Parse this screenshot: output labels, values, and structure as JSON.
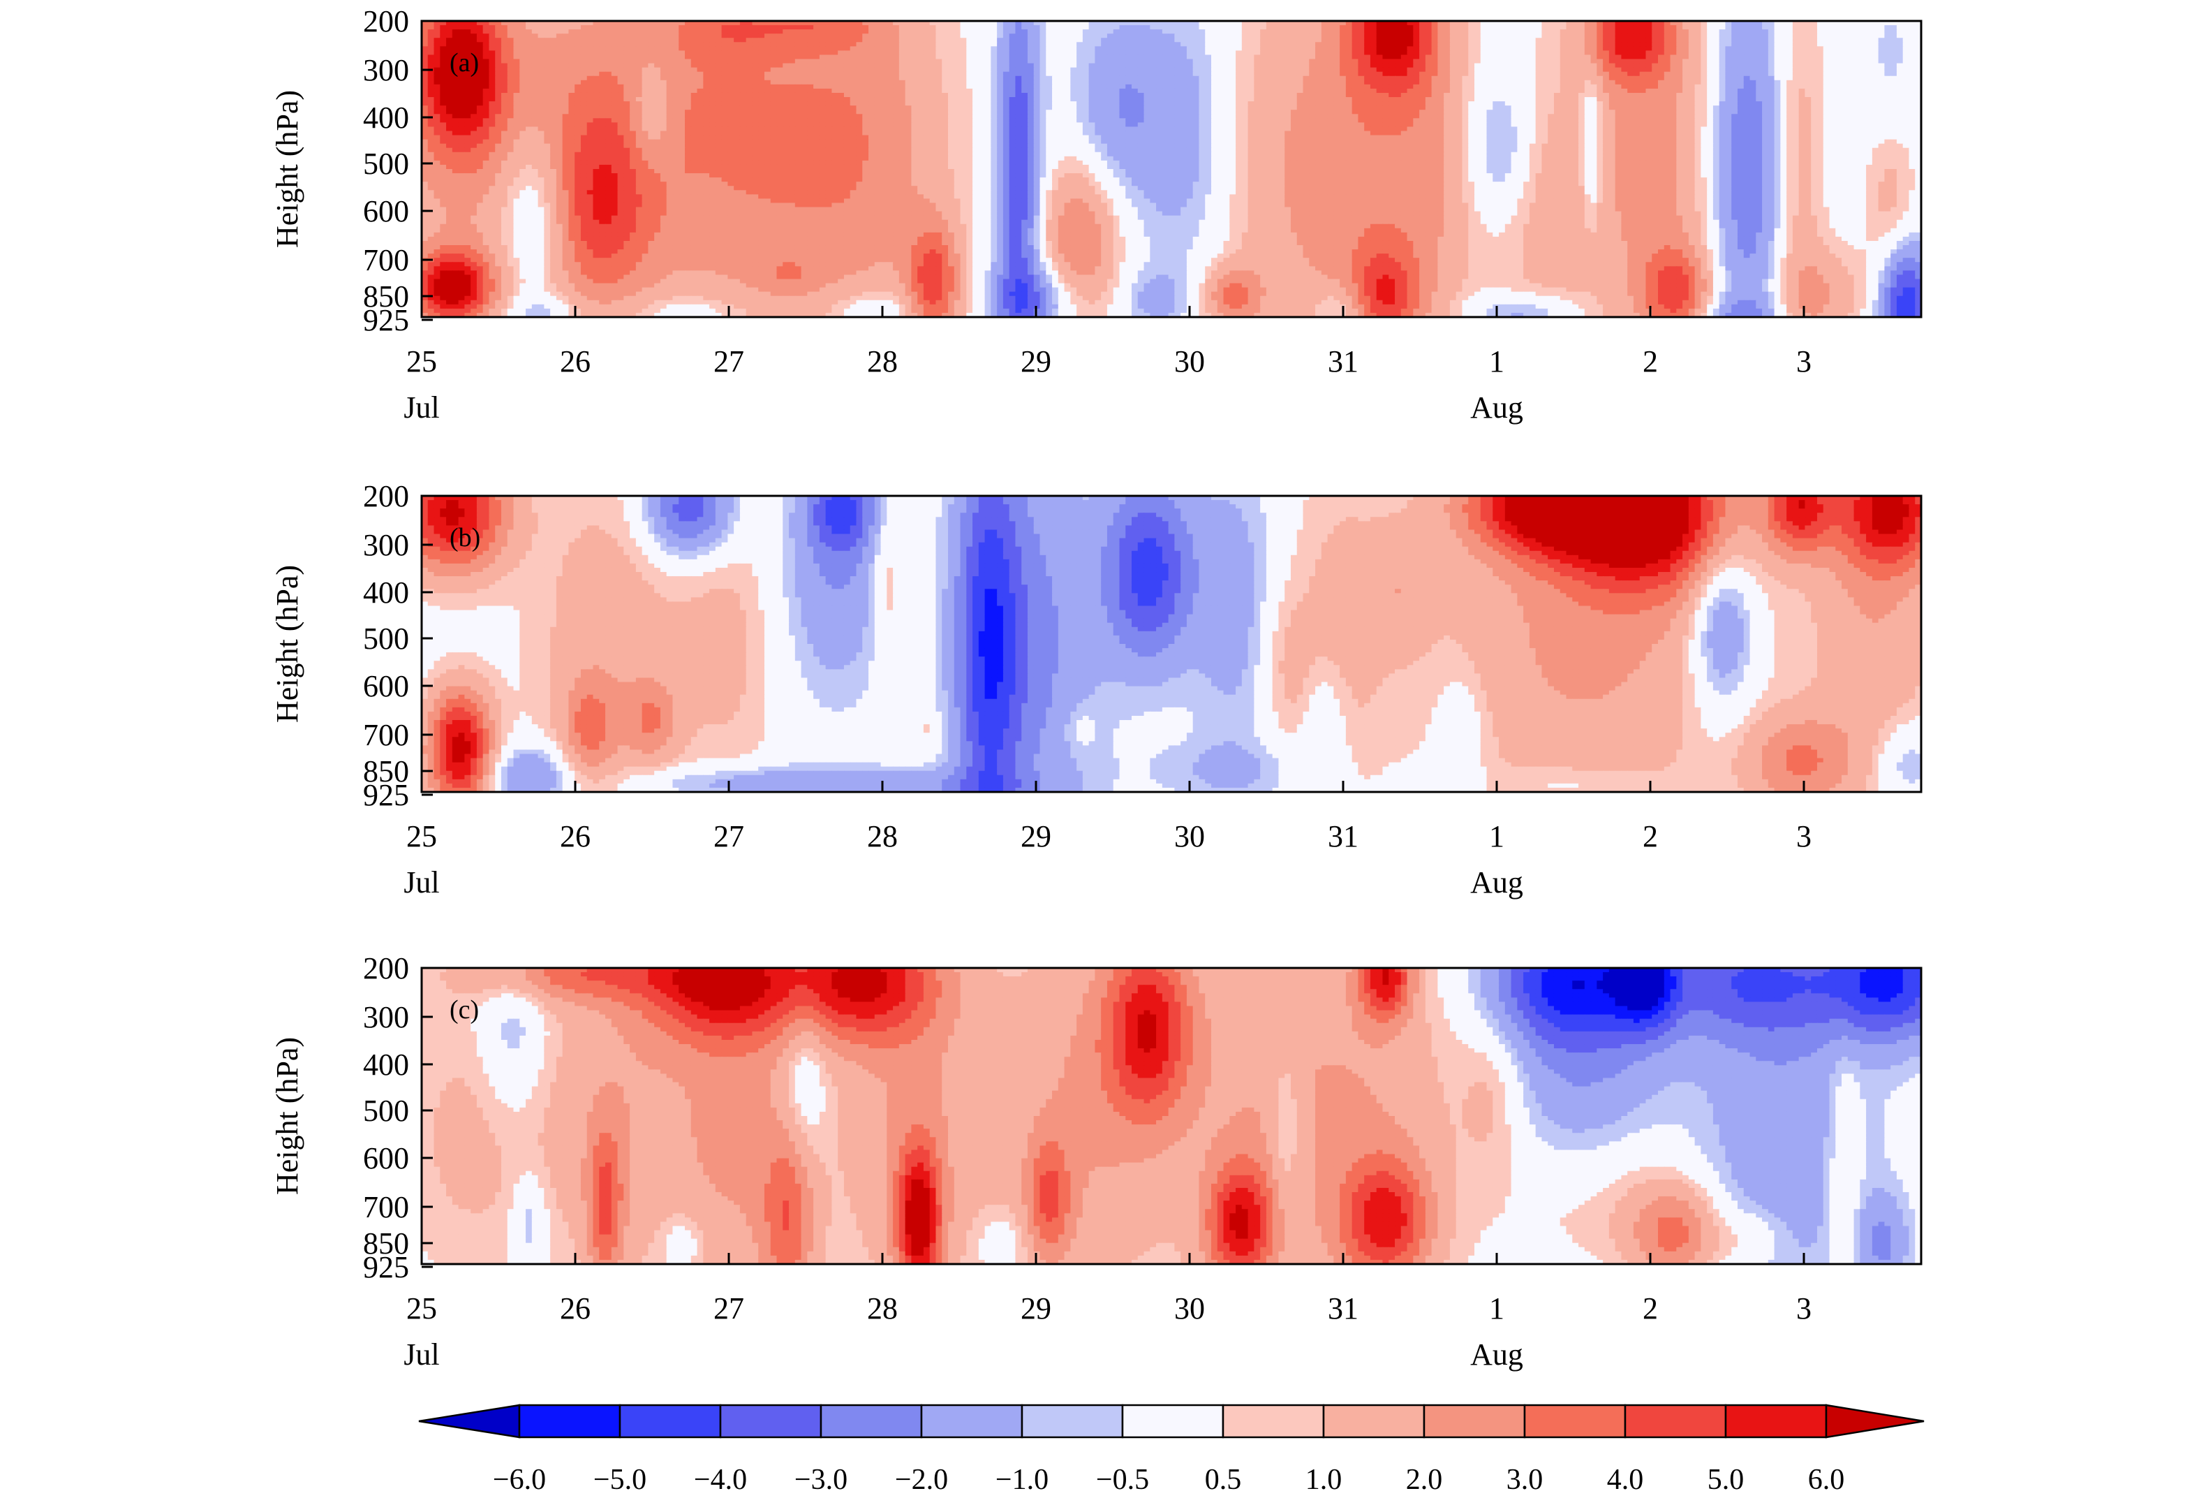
{
  "chart_data": [
    {
      "type": "heatmap",
      "panel_label": "(a)",
      "ylabel": "Height (hPa)",
      "y_ticks": [
        "200",
        "300",
        "400",
        "500",
        "600",
        "700",
        "850",
        "925"
      ],
      "x_ticks": [
        "25",
        "26",
        "27",
        "28",
        "29",
        "30",
        "31",
        "1",
        "2",
        "3"
      ],
      "x_month_labels": [
        {
          "at": "25",
          "text": "Jul"
        },
        {
          "at": "1",
          "text": "Aug"
        }
      ],
      "xlim": [
        0,
        9.8
      ],
      "ylim": [
        0,
        7
      ],
      "blobs": [
        {
          "t": 0.25,
          "h": 1.15,
          "st": 0.2,
          "sh": 1.3,
          "a": 6.2
        },
        {
          "t": 0.2,
          "h": 6.3,
          "st": 0.18,
          "sh": 0.6,
          "a": 6.0
        },
        {
          "t": 0.45,
          "h": 3.5,
          "st": 0.6,
          "sh": 3.0,
          "a": 2.0
        },
        {
          "t": 1.15,
          "h": 4.5,
          "st": 0.25,
          "sh": 1.6,
          "a": 3.4
        },
        {
          "t": 1.2,
          "h": 1.5,
          "st": 0.5,
          "sh": 2.0,
          "a": 1.2
        },
        {
          "t": 0.75,
          "h": 4.5,
          "st": 0.18,
          "sh": 1.5,
          "a": -2.8
        },
        {
          "t": 0.8,
          "h": 6.9,
          "st": 0.2,
          "sh": 0.3,
          "a": -1.3
        },
        {
          "t": 1.85,
          "h": 3.0,
          "st": 0.5,
          "sh": 3.5,
          "a": 1.8
        },
        {
          "t": 1.5,
          "h": 2.2,
          "st": 0.1,
          "sh": 0.9,
          "a": -2.0
        },
        {
          "t": 2.0,
          "h": 0.2,
          "st": 0.25,
          "sh": 0.5,
          "a": 1.5
        },
        {
          "t": 1.75,
          "h": 6.9,
          "st": 0.3,
          "sh": 0.3,
          "a": -1.3
        },
        {
          "t": 2.55,
          "h": 3.0,
          "st": 0.5,
          "sh": 3.5,
          "a": 2.0
        },
        {
          "t": 2.6,
          "h": 0.1,
          "st": 0.3,
          "sh": 0.4,
          "a": 1.6
        },
        {
          "t": 2.4,
          "h": 6.0,
          "st": 0.12,
          "sh": 0.3,
          "a": 1.0
        },
        {
          "t": 3.0,
          "h": 3.0,
          "st": 0.35,
          "sh": 3.0,
          "a": 1.3
        },
        {
          "t": 3.35,
          "h": 6.2,
          "st": 0.12,
          "sh": 1.0,
          "a": 4.0
        },
        {
          "t": 2.95,
          "h": 6.95,
          "st": 0.2,
          "sh": 0.4,
          "a": -1.8
        },
        {
          "t": 3.9,
          "h": 3.5,
          "st": 0.1,
          "sh": 3.0,
          "a": -4.0
        },
        {
          "t": 4.0,
          "h": 6.6,
          "st": 0.2,
          "sh": 0.6,
          "a": -2.5
        },
        {
          "t": 4.3,
          "h": 5.2,
          "st": 0.18,
          "sh": 1.3,
          "a": 3.0
        },
        {
          "t": 4.55,
          "h": 2.0,
          "st": 0.2,
          "sh": 1.5,
          "a": -1.8
        },
        {
          "t": 5.0,
          "h": 2.8,
          "st": 0.25,
          "sh": 2.5,
          "a": -2.0
        },
        {
          "t": 4.8,
          "h": 6.6,
          "st": 0.15,
          "sh": 0.5,
          "a": -1.3
        },
        {
          "t": 5.55,
          "h": 3.5,
          "st": 0.45,
          "sh": 3.5,
          "a": 1.5
        },
        {
          "t": 5.3,
          "h": 6.5,
          "st": 0.13,
          "sh": 0.5,
          "a": 2.8
        },
        {
          "t": 6.35,
          "h": 0.2,
          "st": 0.2,
          "sh": 1.0,
          "a": 5.0
        },
        {
          "t": 6.2,
          "h": 3.5,
          "st": 0.35,
          "sh": 3.5,
          "a": 2.2
        },
        {
          "t": 6.3,
          "h": 6.5,
          "st": 0.15,
          "sh": 0.8,
          "a": 3.3
        },
        {
          "t": 6.6,
          "h": 3.5,
          "st": 0.2,
          "sh": 3.5,
          "a": 1.2
        },
        {
          "t": 6.0,
          "h": 6.8,
          "st": 0.12,
          "sh": 0.4,
          "a": -1.5
        },
        {
          "t": 7.05,
          "h": 3.0,
          "st": 0.15,
          "sh": 1.2,
          "a": -1.8
        },
        {
          "t": 7.2,
          "h": 6.9,
          "st": 0.25,
          "sh": 0.3,
          "a": -1.8
        },
        {
          "t": 7.3,
          "h": 4.5,
          "st": 0.25,
          "sh": 2.5,
          "a": 1.2
        },
        {
          "t": 7.65,
          "h": 3.0,
          "st": 0.05,
          "sh": 1.3,
          "a": -2.0
        },
        {
          "t": 7.9,
          "h": 0.3,
          "st": 0.2,
          "sh": 0.8,
          "a": 4.5
        },
        {
          "t": 8.05,
          "h": 3.5,
          "st": 0.35,
          "sh": 3.5,
          "a": 2.4
        },
        {
          "t": 8.2,
          "h": 6.4,
          "st": 0.15,
          "sh": 0.7,
          "a": 3.5
        },
        {
          "t": 8.65,
          "h": 3.5,
          "st": 0.18,
          "sh": 3.0,
          "a": -3.2
        },
        {
          "t": 8.6,
          "h": 6.95,
          "st": 0.2,
          "sh": 0.3,
          "a": -1.5
        },
        {
          "t": 9.0,
          "h": 3.5,
          "st": 0.12,
          "sh": 3.5,
          "a": 1.5
        },
        {
          "t": 9.15,
          "h": 6.5,
          "st": 0.2,
          "sh": 0.8,
          "a": 1.8
        },
        {
          "t": 9.7,
          "h": 6.7,
          "st": 0.12,
          "sh": 1.0,
          "a": -5.0
        },
        {
          "t": 9.6,
          "h": 4.0,
          "st": 0.12,
          "sh": 1.8,
          "a": 1.5
        },
        {
          "t": 9.6,
          "h": 1.5,
          "st": 0.12,
          "sh": 1.5,
          "a": -1.0
        }
      ]
    },
    {
      "type": "heatmap",
      "panel_label": "(b)",
      "ylabel": "Height (hPa)",
      "y_ticks": [
        "200",
        "300",
        "400",
        "500",
        "600",
        "700",
        "850",
        "925"
      ],
      "x_ticks": [
        "25",
        "26",
        "27",
        "28",
        "29",
        "30",
        "31",
        "1",
        "2",
        "3"
      ],
      "x_month_labels": [
        {
          "at": "25",
          "text": "Jul"
        },
        {
          "at": "1",
          "text": "Aug"
        }
      ],
      "xlim": [
        0,
        9.8
      ],
      "ylim": [
        0,
        7
      ],
      "blobs": [
        {
          "t": 0.2,
          "h": 0.4,
          "st": 0.25,
          "sh": 1.0,
          "a": 6.2
        },
        {
          "t": 0.25,
          "h": 6.0,
          "st": 0.15,
          "sh": 1.0,
          "a": 6.5
        },
        {
          "t": 0.7,
          "h": 6.6,
          "st": 0.2,
          "sh": 0.5,
          "a": -2.3
        },
        {
          "t": 1.2,
          "h": 3.5,
          "st": 0.35,
          "sh": 3.0,
          "a": 1.6
        },
        {
          "t": 1.1,
          "h": 5.5,
          "st": 0.12,
          "sh": 0.8,
          "a": 2.5
        },
        {
          "t": 1.5,
          "h": 5.3,
          "st": 0.12,
          "sh": 0.7,
          "a": 2.2
        },
        {
          "t": 1.75,
          "h": 0.3,
          "st": 0.2,
          "sh": 0.8,
          "a": -4.0
        },
        {
          "t": 2.0,
          "h": 3.5,
          "st": 0.25,
          "sh": 2.5,
          "a": 1.2
        },
        {
          "t": 2.2,
          "h": 6.8,
          "st": 0.6,
          "sh": 0.3,
          "a": -1.8
        },
        {
          "t": 2.7,
          "h": 1.8,
          "st": 0.25,
          "sh": 2.0,
          "a": -2.0
        },
        {
          "t": 2.75,
          "h": 0.3,
          "st": 0.15,
          "sh": 0.7,
          "a": -3.3
        },
        {
          "t": 3.05,
          "h": 2.0,
          "st": 0.08,
          "sh": 1.5,
          "a": 1.3
        },
        {
          "t": 3.3,
          "h": 6.9,
          "st": 0.5,
          "sh": 0.3,
          "a": -1.3
        },
        {
          "t": 3.7,
          "h": 3.5,
          "st": 0.15,
          "sh": 3.5,
          "a": -4.0
        },
        {
          "t": 4.0,
          "h": 3.5,
          "st": 0.3,
          "sh": 3.5,
          "a": -2.2
        },
        {
          "t": 4.75,
          "h": 1.8,
          "st": 0.2,
          "sh": 1.5,
          "a": -4.5
        },
        {
          "t": 3.3,
          "h": 5.5,
          "st": 0.06,
          "sh": 0.3,
          "a": 0.8
        },
        {
          "t": 4.3,
          "h": 5.5,
          "st": 0.08,
          "sh": 0.4,
          "a": 0.8
        },
        {
          "t": 5.3,
          "h": 2.5,
          "st": 0.2,
          "sh": 2.5,
          "a": -1.5
        },
        {
          "t": 5.3,
          "h": 6.5,
          "st": 0.4,
          "sh": 0.5,
          "a": -1.0
        },
        {
          "t": 5.65,
          "h": 4.0,
          "st": 0.12,
          "sh": 1.3,
          "a": 1.0
        },
        {
          "t": 6.0,
          "h": 3.0,
          "st": 0.25,
          "sh": 3.0,
          "a": 1.2
        },
        {
          "t": 5.9,
          "h": 5.5,
          "st": 0.1,
          "sh": 1.0,
          "a": -1.2
        },
        {
          "t": 6.4,
          "h": 2.2,
          "st": 0.15,
          "sh": 1.0,
          "a": 1.2
        },
        {
          "t": 6.8,
          "h": 5.5,
          "st": 0.12,
          "sh": 1.0,
          "a": -1.0
        },
        {
          "t": 7.4,
          "h": 0.2,
          "st": 0.4,
          "sh": 0.8,
          "a": 6.5
        },
        {
          "t": 8.0,
          "h": 0.5,
          "st": 0.4,
          "sh": 1.2,
          "a": 6.5
        },
        {
          "t": 7.6,
          "h": 3.5,
          "st": 0.7,
          "sh": 3.0,
          "a": 2.2
        },
        {
          "t": 9.0,
          "h": 0.2,
          "st": 0.15,
          "sh": 0.8,
          "a": 5.0
        },
        {
          "t": 9.6,
          "h": 0.3,
          "st": 0.25,
          "sh": 1.0,
          "a": 5.5
        },
        {
          "t": 9.5,
          "h": 3.0,
          "st": 0.3,
          "sh": 3.0,
          "a": 1.8
        },
        {
          "t": 8.5,
          "h": 3.0,
          "st": 0.15,
          "sh": 1.5,
          "a": -2.8
        },
        {
          "t": 9.0,
          "h": 6.3,
          "st": 0.25,
          "sh": 0.8,
          "a": 2.8
        },
        {
          "t": 9.7,
          "h": 6.3,
          "st": 0.15,
          "sh": 0.7,
          "a": -1.5
        },
        {
          "t": 7.5,
          "h": 6.8,
          "st": 0.3,
          "sh": 0.3,
          "a": -0.7
        }
      ]
    },
    {
      "type": "heatmap",
      "panel_label": "(c)",
      "ylabel": "Height (hPa)",
      "y_ticks": [
        "200",
        "300",
        "400",
        "500",
        "600",
        "700",
        "850",
        "925"
      ],
      "x_ticks": [
        "25",
        "26",
        "27",
        "28",
        "29",
        "30",
        "31",
        "1",
        "2",
        "3"
      ],
      "x_month_labels": [
        {
          "at": "25",
          "text": "Jul"
        },
        {
          "at": "1",
          "text": "Aug"
        }
      ],
      "xlim": [
        0,
        9.8
      ],
      "ylim": [
        0,
        7
      ],
      "blobs": [
        {
          "t": 0.3,
          "h": 4.0,
          "st": 0.35,
          "sh": 2.5,
          "a": 1.2
        },
        {
          "t": 0.6,
          "h": 1.5,
          "st": 0.15,
          "sh": 1.5,
          "a": -1.5
        },
        {
          "t": 0.7,
          "h": 6.0,
          "st": 0.08,
          "sh": 0.8,
          "a": -1.5
        },
        {
          "t": 1.0,
          "h": 0.1,
          "st": 0.5,
          "sh": 0.5,
          "a": 3.0
        },
        {
          "t": 1.3,
          "h": 3.5,
          "st": 0.4,
          "sh": 3.0,
          "a": 1.8
        },
        {
          "t": 1.2,
          "h": 5.7,
          "st": 0.08,
          "sh": 1.3,
          "a": 3.3
        },
        {
          "t": 1.95,
          "h": 0.3,
          "st": 0.35,
          "sh": 1.0,
          "a": 5.5
        },
        {
          "t": 2.85,
          "h": 0.3,
          "st": 0.35,
          "sh": 1.0,
          "a": 5.5
        },
        {
          "t": 2.1,
          "h": 4.0,
          "st": 0.3,
          "sh": 3.0,
          "a": 2.0
        },
        {
          "t": 1.7,
          "h": 6.5,
          "st": 0.1,
          "sh": 0.5,
          "a": -1.2
        },
        {
          "t": 2.4,
          "h": 6.0,
          "st": 0.12,
          "sh": 1.5,
          "a": 3.0
        },
        {
          "t": 2.5,
          "h": 2.5,
          "st": 0.1,
          "sh": 1.5,
          "a": -1.5
        },
        {
          "t": 3.2,
          "h": 3.5,
          "st": 0.35,
          "sh": 3.5,
          "a": 2.0
        },
        {
          "t": 3.25,
          "h": 6.0,
          "st": 0.1,
          "sh": 1.2,
          "a": 6.0
        },
        {
          "t": 3.8,
          "h": 6.5,
          "st": 0.12,
          "sh": 0.5,
          "a": -1.0
        },
        {
          "t": 4.1,
          "h": 5.5,
          "st": 0.1,
          "sh": 1.0,
          "a": 3.0
        },
        {
          "t": 4.75,
          "h": 1.4,
          "st": 0.2,
          "sh": 1.5,
          "a": 5.0
        },
        {
          "t": 4.3,
          "h": 3.5,
          "st": 0.4,
          "sh": 3.5,
          "a": 2.0
        },
        {
          "t": 5.35,
          "h": 6.1,
          "st": 0.15,
          "sh": 1.0,
          "a": 5.0
        },
        {
          "t": 5.4,
          "h": 3.5,
          "st": 0.4,
          "sh": 3.5,
          "a": 1.5
        },
        {
          "t": 5.65,
          "h": 3.8,
          "st": 0.08,
          "sh": 1.5,
          "a": -1.5
        },
        {
          "t": 6.3,
          "h": 0.2,
          "st": 0.12,
          "sh": 0.7,
          "a": 5.0
        },
        {
          "t": 6.3,
          "h": 6.0,
          "st": 0.2,
          "sh": 1.0,
          "a": 4.5
        },
        {
          "t": 6.2,
          "h": 3.5,
          "st": 0.45,
          "sh": 3.5,
          "a": 1.8
        },
        {
          "t": 7.0,
          "h": 3.0,
          "st": 0.15,
          "sh": 1.3,
          "a": 1.2
        },
        {
          "t": 7.5,
          "h": 5.5,
          "st": 0.35,
          "sh": 1.5,
          "a": 1.6
        },
        {
          "t": 7.5,
          "h": 0.3,
          "st": 0.35,
          "sh": 1.0,
          "a": -4.5
        },
        {
          "t": 8.0,
          "h": 0.3,
          "st": 0.15,
          "sh": 0.8,
          "a": -4.5
        },
        {
          "t": 8.7,
          "h": 0.3,
          "st": 0.4,
          "sh": 1.0,
          "a": -3.5
        },
        {
          "t": 9.6,
          "h": 0.3,
          "st": 0.3,
          "sh": 1.0,
          "a": -5.0
        },
        {
          "t": 7.6,
          "h": 3.0,
          "st": 0.4,
          "sh": 3.0,
          "a": -2.2
        },
        {
          "t": 8.9,
          "h": 4.0,
          "st": 0.4,
          "sh": 2.8,
          "a": -1.8
        },
        {
          "t": 8.2,
          "h": 6.3,
          "st": 0.2,
          "sh": 0.8,
          "a": 3.0
        },
        {
          "t": 8.0,
          "h": 5.5,
          "st": 0.3,
          "sh": 1.5,
          "a": 1.2
        },
        {
          "t": 8.7,
          "h": 6.4,
          "st": 0.15,
          "sh": 0.5,
          "a": 1.2
        },
        {
          "t": 9.3,
          "h": 4.5,
          "st": 0.08,
          "sh": 2.0,
          "a": 1.3
        },
        {
          "t": 9.55,
          "h": 6.5,
          "st": 0.12,
          "sh": 0.8,
          "a": -2.0
        }
      ]
    }
  ],
  "colorbar": {
    "levels": [
      -6.0,
      -5.0,
      -4.0,
      -3.0,
      -2.0,
      -1.0,
      -0.5,
      0.5,
      1.0,
      2.0,
      3.0,
      4.0,
      5.0,
      6.0
    ],
    "labels": [
      "−6.0",
      "−5.0",
      "−4.0",
      "−3.0",
      "−2.0",
      "−1.0",
      "−0.5",
      "0.5",
      "1.0",
      "2.0",
      "3.0",
      "4.0",
      "5.0",
      "6.0"
    ],
    "colors": [
      "#0000c8",
      "#0a14ff",
      "#3a44f8",
      "#6060f0",
      "#8088f0",
      "#a0a8f4",
      "#c0c8f8",
      "#f8f8ff",
      "#fcc8be",
      "#f8b0a0",
      "#f49480",
      "#f46e58",
      "#f0463e",
      "#e81414",
      "#c80000"
    ]
  }
}
